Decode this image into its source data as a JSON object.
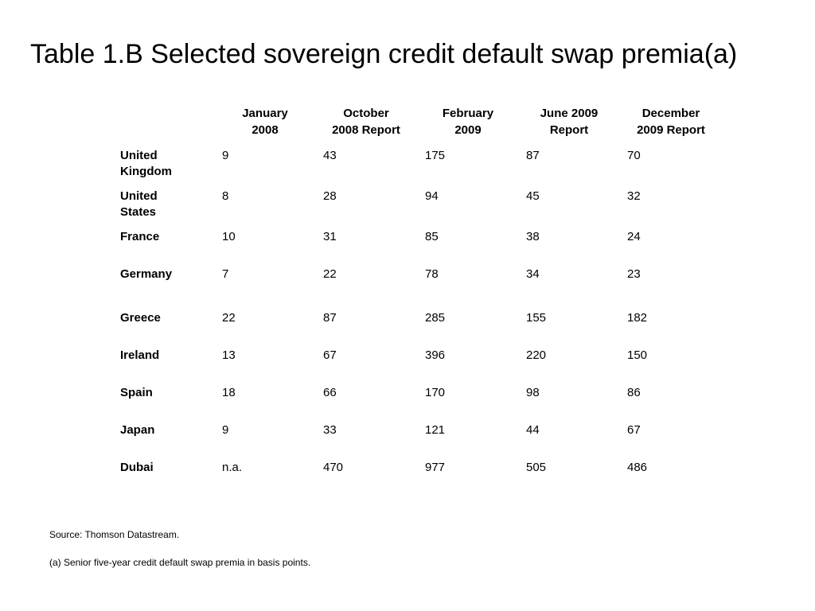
{
  "title": "Table 1.B  Selected sovereign credit default swap premia(a)",
  "columns": [
    "January\n2008",
    "October\n2008 Report",
    "February\n2009",
    "June 2009\nReport",
    "December\n2009 Report"
  ],
  "rows": [
    {
      "label": "United\nKingdom",
      "values": [
        "9",
        "43",
        "175",
        "87",
        "70"
      ]
    },
    {
      "label": "United\nStates",
      "values": [
        "8",
        "28",
        "94",
        "45",
        "32"
      ]
    },
    {
      "label": "France",
      "values": [
        "10",
        "31",
        "85",
        "38",
        "24"
      ]
    },
    {
      "label": "Germany",
      "values": [
        "7",
        "22",
        "78",
        "34",
        "23"
      ]
    },
    {
      "label": "Greece",
      "values": [
        "22",
        "87",
        "285",
        "155",
        "182"
      ]
    },
    {
      "label": "Ireland",
      "values": [
        "13",
        "67",
        "396",
        "220",
        "150"
      ]
    },
    {
      "label": "Spain",
      "values": [
        "18",
        "66",
        "170",
        "98",
        "86"
      ]
    },
    {
      "label": "Japan",
      "values": [
        "9",
        "33",
        "121",
        "44",
        "67"
      ]
    },
    {
      "label": "Dubai",
      "values": [
        "n.a.",
        "470",
        "977",
        "505",
        "486"
      ]
    }
  ],
  "source": "Source:  Thomson Datastream.",
  "footnote": "(a)  Senior five-year credit default swap premia in basis points."
}
